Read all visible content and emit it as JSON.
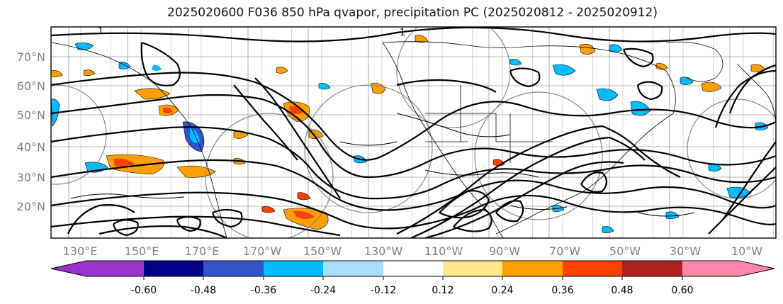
{
  "title": "2025020600 F036 850 hPa qvapor, precipitation PC (2025020812 - 2025020912)",
  "map": {
    "lat_labels": [
      "70°N",
      "60°N",
      "50°N",
      "40°N",
      "30°N",
      "20°N"
    ],
    "lon_labels": [
      "130°E",
      "150°E",
      "170°E",
      "170°W",
      "150°W",
      "130°W",
      "110°W",
      "90°W",
      "70°W",
      "50°W",
      "30°W",
      "10°W"
    ],
    "contour_labels": [
      "1",
      "1"
    ],
    "axis_label_color": "#808080"
  },
  "colorbar": {
    "ticks": [
      "-0.60",
      "-0.48",
      "-0.36",
      "-0.24",
      "-0.12",
      "0.12",
      "0.24",
      "0.36",
      "0.48",
      "0.60"
    ],
    "under_color": "#9933cc",
    "segment_colors": [
      "#9933cc",
      "#000088",
      "#3355cc",
      "#00bbff",
      "#aadeff",
      "#ffffff",
      "#ffe98a",
      "#ffa000",
      "#ff4000",
      "#b02222",
      "#ff88aa"
    ],
    "over_color": "#ff88aa"
  },
  "shading_colors": {
    "positive_light": "#ffe98a",
    "positive_mid": "#ffa000",
    "positive_strong": "#ff4000",
    "negative_light": "#aadeff",
    "negative_mid": "#00bbff",
    "negative_strong": "#3355cc"
  }
}
